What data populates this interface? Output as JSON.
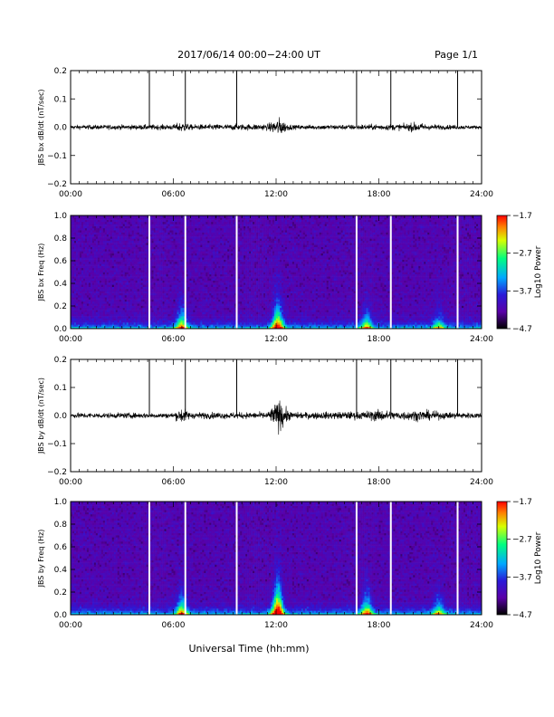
{
  "header": {
    "title": "2017/06/14  00:00−24:00 UT",
    "page": "Page 1/1"
  },
  "footer": {
    "xlabel": "Universal Time (hh:mm)"
  },
  "colors": {
    "trace": "#000000",
    "gap": "#ffffff",
    "colormap": [
      "#000000",
      "#5a00a8",
      "#2a1ad8",
      "#00a8ff",
      "#00ff80",
      "#d8ff00",
      "#ff8000",
      "#ff0000"
    ]
  },
  "chart_data": [
    {
      "type": "line",
      "ylabel": "JBS bx dB/dt (nT/sec)",
      "ylim": [
        -0.2,
        0.2
      ],
      "yticks": [
        "0.2",
        "0.1",
        "0.0",
        "−0.1",
        "−0.2"
      ],
      "xticks": [
        "00:00",
        "06:00",
        "12:00",
        "18:00",
        "24:00"
      ],
      "xlim_hours": [
        0,
        24
      ],
      "noise_profile": [
        [
          0,
          0.008
        ],
        [
          6,
          0.01
        ],
        [
          6.5,
          0.02
        ],
        [
          7,
          0.01
        ],
        [
          11.5,
          0.012
        ],
        [
          12.2,
          0.035
        ],
        [
          12.6,
          0.015
        ],
        [
          13,
          0.008
        ],
        [
          17,
          0.01
        ],
        [
          19.5,
          0.012
        ],
        [
          20.2,
          0.018
        ],
        [
          21,
          0.01
        ],
        [
          24,
          0.006
        ]
      ],
      "spikes_hours": [
        4.6,
        6.7,
        9.7,
        16.7,
        18.7,
        22.6
      ],
      "spike_peak": 0.2
    },
    {
      "type": "heatmap",
      "ylabel": "JBS bx Freq (Hz)",
      "ylim": [
        0.0,
        1.0
      ],
      "yticks": [
        "1.0",
        "0.8",
        "0.6",
        "0.4",
        "0.2",
        "0.0"
      ],
      "xticks": [
        "00:00",
        "06:00",
        "12:00",
        "18:00",
        "24:00"
      ],
      "xlim_hours": [
        0,
        24
      ],
      "colorbar": {
        "label": "Log10 Power",
        "ticks": [
          "−1.7",
          "−2.7",
          "−3.7",
          "−4.7"
        ],
        "range": [
          -4.7,
          -1.7
        ]
      },
      "gaps_hours": [
        4.6,
        6.7,
        9.7,
        16.7,
        18.7,
        22.6
      ],
      "activity_hours": [
        [
          6.5,
          0.6
        ],
        [
          12.1,
          0.8
        ],
        [
          17.3,
          0.5
        ],
        [
          21.5,
          0.4
        ]
      ]
    },
    {
      "type": "line",
      "ylabel": "JBS by dB/dt (nT/sec)",
      "ylim": [
        -0.2,
        0.2
      ],
      "yticks": [
        "0.2",
        "0.1",
        "0.0",
        "−0.1",
        "−0.2"
      ],
      "xticks": [
        "00:00",
        "06:00",
        "12:00",
        "18:00",
        "24:00"
      ],
      "xlim_hours": [
        0,
        24
      ],
      "noise_profile": [
        [
          0,
          0.01
        ],
        [
          6,
          0.01
        ],
        [
          6.5,
          0.03
        ],
        [
          7,
          0.012
        ],
        [
          11.5,
          0.012
        ],
        [
          12.2,
          0.06
        ],
        [
          12.7,
          0.02
        ],
        [
          13,
          0.012
        ],
        [
          17,
          0.015
        ],
        [
          18,
          0.022
        ],
        [
          19,
          0.015
        ],
        [
          20.5,
          0.02
        ],
        [
          22,
          0.012
        ],
        [
          24,
          0.01
        ]
      ],
      "spikes_hours": [
        4.6,
        6.7,
        9.7,
        16.7,
        18.7,
        22.6
      ],
      "spike_peak": 0.2
    },
    {
      "type": "heatmap",
      "ylabel": "JBS by Freq (Hz)",
      "ylim": [
        0.0,
        1.0
      ],
      "yticks": [
        "1.0",
        "0.8",
        "0.6",
        "0.4",
        "0.2",
        "0.0"
      ],
      "xticks": [
        "00:00",
        "06:00",
        "12:00",
        "18:00",
        "24:00"
      ],
      "xlim_hours": [
        0,
        24
      ],
      "colorbar": {
        "label": "Log10 Power",
        "ticks": [
          "−1.7",
          "−2.7",
          "−3.7",
          "−4.7"
        ],
        "range": [
          -4.7,
          -1.7
        ]
      },
      "gaps_hours": [
        4.6,
        6.7,
        9.7,
        16.7,
        18.7,
        22.6
      ],
      "activity_hours": [
        [
          6.5,
          0.6
        ],
        [
          12.1,
          1.0
        ],
        [
          17.3,
          0.6
        ],
        [
          21.5,
          0.45
        ]
      ]
    }
  ]
}
